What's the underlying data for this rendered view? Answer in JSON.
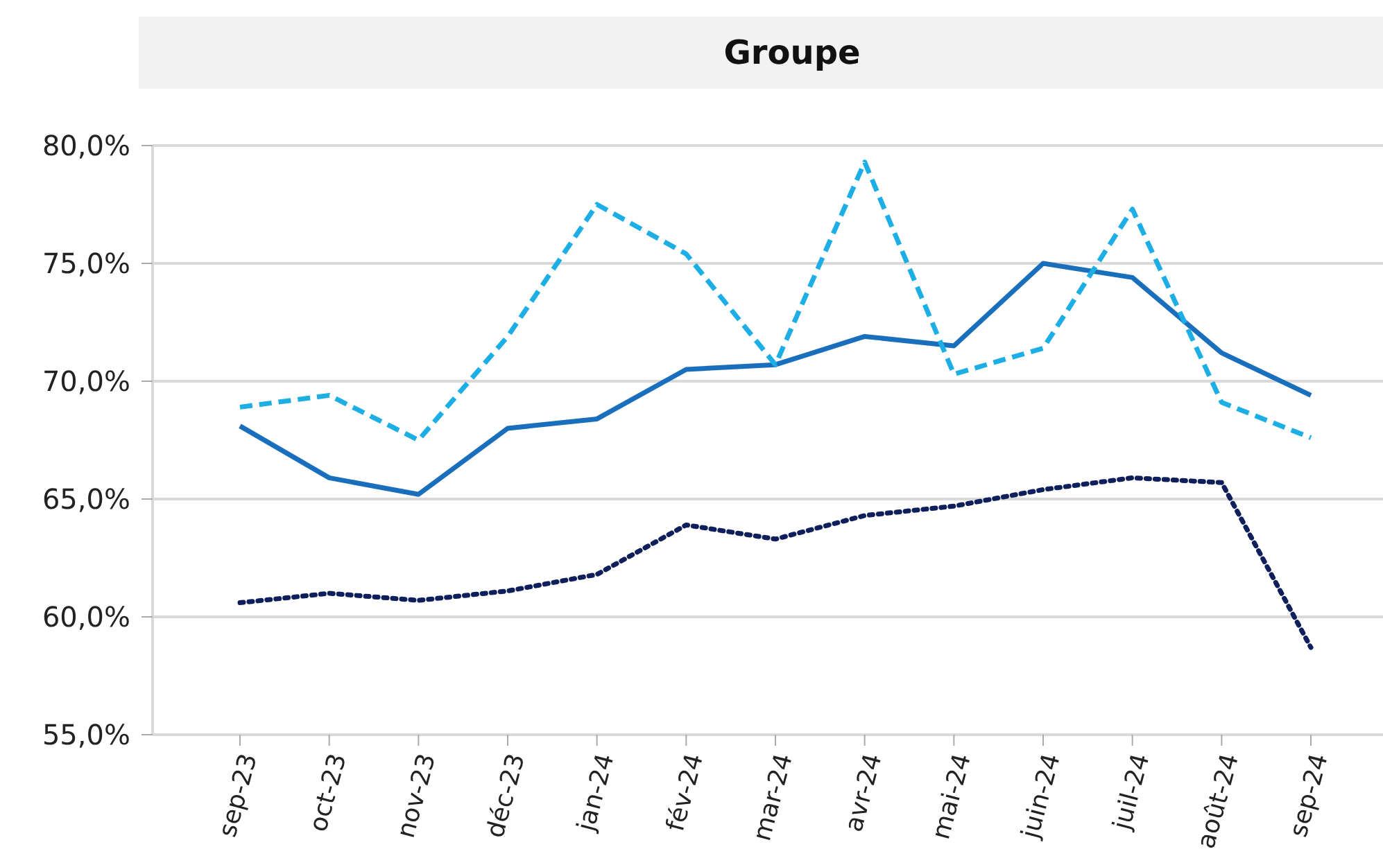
{
  "chart_data": {
    "type": "line",
    "title": "Groupe",
    "categories": [
      "sep-23",
      "oct-23",
      "nov-23",
      "déc-23",
      "jan-24",
      "fév-24",
      "mar-24",
      "avr-24",
      "mai-24",
      "juin-24",
      "juil-24",
      "août-24",
      "sep-24"
    ],
    "series": [
      {
        "color": "#1a6fbd",
        "line_style": "solid",
        "values": [
          68.1,
          65.9,
          65.2,
          68.0,
          68.4,
          70.5,
          70.7,
          71.9,
          71.5,
          75.0,
          74.4,
          71.2,
          69.4
        ]
      },
      {
        "color": "#1eaee6",
        "line_style": "dashed",
        "values": [
          68.9,
          69.4,
          67.5,
          71.9,
          77.5,
          75.4,
          70.7,
          79.3,
          70.3,
          71.4,
          77.3,
          69.1,
          67.6
        ]
      },
      {
        "color": "#0e1f5b",
        "line_style": "dotted",
        "values": [
          60.6,
          61.0,
          60.7,
          61.1,
          61.8,
          63.9,
          63.3,
          64.3,
          64.7,
          65.4,
          65.9,
          65.7,
          58.7
        ]
      }
    ],
    "ylim": [
      55,
      80
    ],
    "yticks": [
      {
        "value": 55,
        "label": "55,0%"
      },
      {
        "value": 60,
        "label": "60,0%"
      },
      {
        "value": 65,
        "label": "65,0%"
      },
      {
        "value": 70,
        "label": "70,0%"
      },
      {
        "value": 75,
        "label": "75,0%"
      },
      {
        "value": 80,
        "label": "80,0%"
      }
    ],
    "grid": "y",
    "marker": "none"
  }
}
